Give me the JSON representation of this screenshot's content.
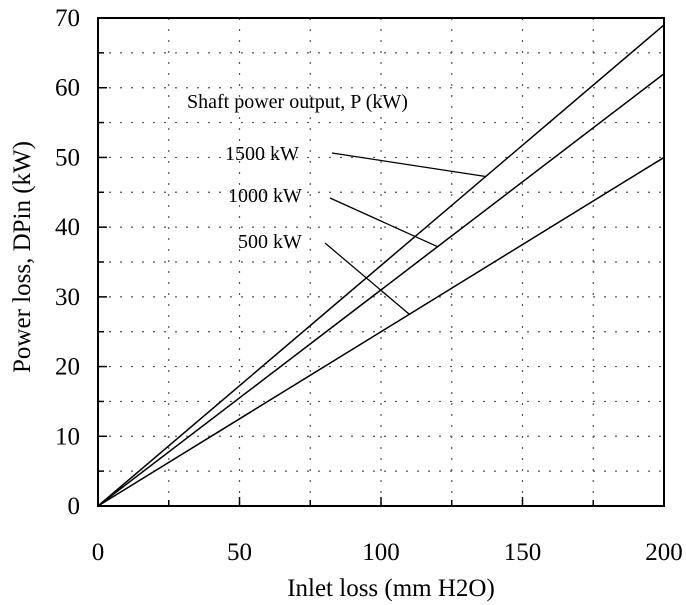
{
  "chart_data": {
    "type": "line",
    "xlabel": "Inlet loss  (mm H2O)",
    "ylabel": "Power loss,  DPin  (kW)",
    "xlim": [
      0,
      200
    ],
    "ylim": [
      0,
      70
    ],
    "xticks": [
      "0",
      "50",
      "100",
      "150",
      "200"
    ],
    "yticks": [
      "0",
      "10",
      "20",
      "30",
      "40",
      "50",
      "60",
      "70"
    ],
    "grid": true,
    "legend_title": "Shaft power output, P (kW)",
    "series": [
      {
        "name": "1500 kW",
        "x": [
          0,
          200
        ],
        "y": [
          0,
          69
        ]
      },
      {
        "name": "1000 kW",
        "x": [
          0,
          200
        ],
        "y": [
          0,
          62
        ]
      },
      {
        "name": "500 kW",
        "x": [
          0,
          200
        ],
        "y": [
          0,
          50
        ]
      }
    ],
    "annotations": [
      {
        "text": "1500 kW",
        "target_series": "1500 kW",
        "target_x": 137
      },
      {
        "text": "1000 kW",
        "target_series": "1000 kW",
        "target_x": 120
      },
      {
        "text": "500 kW",
        "target_series": "500 kW",
        "target_x": 110
      }
    ]
  }
}
